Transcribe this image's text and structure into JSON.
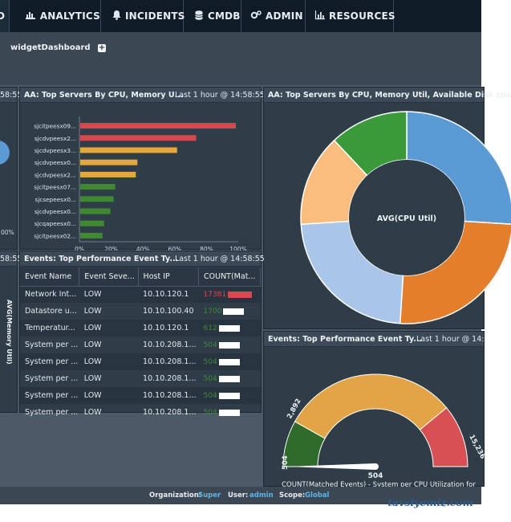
{
  "nav": {
    "tabs": [
      {
        "label": "D",
        "icon": ""
      },
      {
        "label": "ANALYTICS",
        "icon": "bar-chart-icon"
      },
      {
        "label": "INCIDENTS",
        "icon": "bell-icon"
      },
      {
        "label": "CMDB",
        "icon": "database-icon"
      },
      {
        "label": "ADMIN",
        "icon": "gears-icon"
      },
      {
        "label": "RESOURCES",
        "icon": "chart-icon"
      }
    ]
  },
  "toolbar": {
    "dashboard_name": "widgetDashboard",
    "add_label": "+"
  },
  "panels": {
    "left_top": {
      "time": "58:55",
      "axis_end": "00%"
    },
    "left_bottom": {
      "time": "58:55",
      "rotated_label": "AVG(Memory Util)"
    },
    "bars": {
      "title": "AA: Top Servers By CPU, Memory U...",
      "time": "Last 1 hour @ 14:58:55"
    },
    "donut": {
      "title": "AA: Top Servers By CPU, Memory Util, Available Disk spa",
      "center_label": "AVG(CPU Util)"
    },
    "events": {
      "title": "Events: Top Performance Event Ty...",
      "time": "Last 1 hour @ 14:58:55",
      "columns": [
        "Event Name",
        "Event Seve...",
        "Host IP",
        "COUNT(Mat..."
      ],
      "rows": [
        {
          "name": "Network Int...",
          "severity": "LOW",
          "ip": "10.10.120.1",
          "count": "17381"
        },
        {
          "name": "Datastore u...",
          "severity": "LOW",
          "ip": "10.10.100.40",
          "count": "1700"
        },
        {
          "name": "Temperatur...",
          "severity": "LOW",
          "ip": "10.10.120.1",
          "count": "612"
        },
        {
          "name": "System per ...",
          "severity": "LOW",
          "ip": "10.10.208.1...",
          "count": "504"
        },
        {
          "name": "System per ...",
          "severity": "LOW",
          "ip": "10.10.208.1...",
          "count": "504"
        },
        {
          "name": "System per ...",
          "severity": "LOW",
          "ip": "10.10.208.1...",
          "count": "504"
        },
        {
          "name": "System per ...",
          "severity": "LOW",
          "ip": "10.10.208.1...",
          "count": "504"
        },
        {
          "name": "System per ...",
          "severity": "LOW",
          "ip": "10.10.208.1...",
          "count": "504"
        }
      ]
    },
    "gauge": {
      "title": "Events: Top Performance Event Ty...",
      "time": "Last 1 hour @ 14:",
      "footer": "COUNT(Matched Events) - System per CPU Utilization for"
    }
  },
  "footer": {
    "org_label": "Organization:",
    "org_value": "Super",
    "user_label": "User:",
    "user_value": "admin",
    "scope_label": "Scope:",
    "scope_value": "Global"
  },
  "watermark": "tavsiyemiz.com",
  "chart_data": [
    {
      "type": "bar",
      "orientation": "horizontal",
      "title": "AA: Top Servers By CPU, Memory U...",
      "categories": [
        "sjcitpeesx09...",
        "sjcdvpeesx2...",
        "sjcdvpeesx3...",
        "sjcdvpeesx0...",
        "sjcdvpeesx2...",
        "sjcitpeesx07...",
        "sjcsepeesx0...",
        "sjcdvpeesx0...",
        "sjcqapeesx0...",
        "sjcitpeesx02..."
      ],
      "values": [
        98,
        73,
        61,
        36,
        35,
        22,
        21,
        19,
        15,
        14
      ],
      "colors": [
        "#d9474f",
        "#d9474f",
        "#e6a83d",
        "#e6a83d",
        "#e6a83d",
        "#3f8a30",
        "#3f8a30",
        "#3f8a30",
        "#3f8a30",
        "#3f8a30"
      ],
      "xlim": [
        0,
        100
      ],
      "xticks": [
        "0%",
        "20%",
        "40%",
        "60%",
        "80%",
        "100%"
      ]
    },
    {
      "type": "pie",
      "title": "AA: Top Servers By CPU, Memory Util, Available Disk spa",
      "center_label": "AVG(CPU Util)",
      "slices": [
        {
          "value": 26,
          "color": "#5b9bd5"
        },
        {
          "value": 25,
          "color": "#e57e2b"
        },
        {
          "value": 23,
          "color": "#a9c6e8"
        },
        {
          "value": 14,
          "color": "#fbbd7e"
        },
        {
          "value": 12,
          "color": "#3a9a3a"
        }
      ]
    },
    {
      "type": "gauge",
      "title": "Events: Top Performance Event Ty...",
      "min": 504,
      "max": 15236,
      "value": 504,
      "bands": [
        {
          "from": 504,
          "to": 2892,
          "color": "#2f6b2a"
        },
        {
          "from": 2892,
          "to": 12000,
          "color": "#e3a445"
        },
        {
          "from": 12000,
          "to": 15236,
          "color": "#d65054"
        }
      ],
      "labels": [
        "504",
        "2,892",
        "15,236"
      ],
      "value_label": "504"
    }
  ]
}
